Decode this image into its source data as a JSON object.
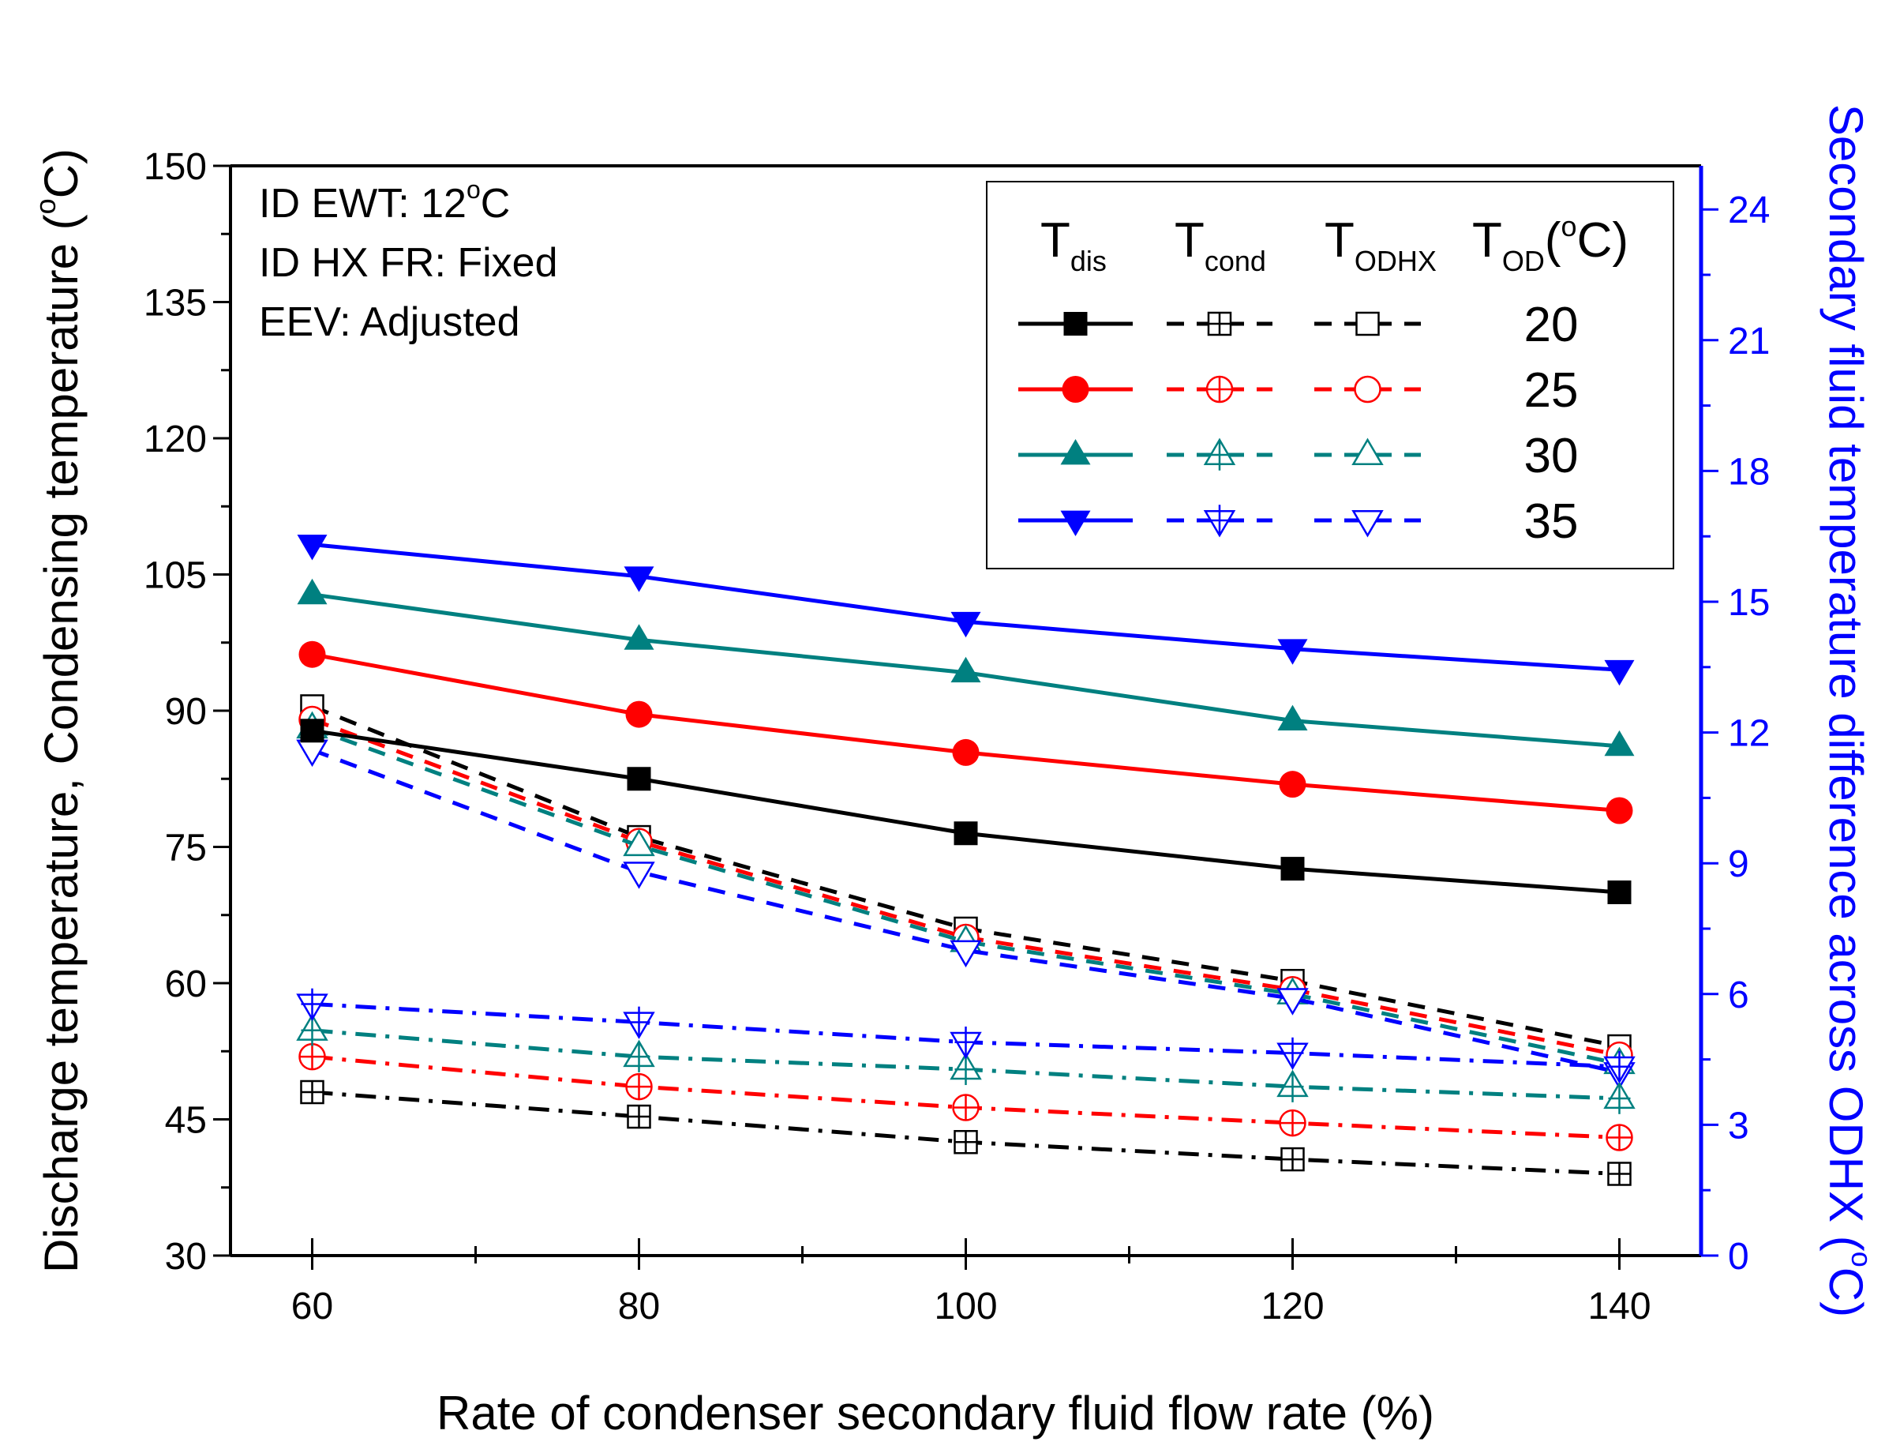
{
  "chart_data": {
    "type": "line",
    "x": [
      60,
      80,
      100,
      120,
      140
    ],
    "xlabel": "Rate of condenser secondary fluid flow rate (%)",
    "ylabel": "Discharge temperature, Condensing temperature (",
    "ylabel_unit": "C)",
    "y2label": "Secondary fluid temperature difference across ODHX (",
    "y2label_unit": "C)",
    "degree_symbol": "o",
    "xlim": [
      55,
      145
    ],
    "ylim": [
      30,
      150
    ],
    "y2lim": [
      0,
      25
    ],
    "xticks": [
      60,
      80,
      100,
      120,
      140
    ],
    "yticks": [
      30,
      45,
      60,
      75,
      90,
      105,
      120,
      135,
      150
    ],
    "y2ticks": [
      0,
      3,
      6,
      9,
      12,
      15,
      18,
      21,
      24
    ],
    "annotations": {
      "line1_pre": "ID EWT: 12",
      "line1_post": "C",
      "line2": "ID HX FR: Fixed",
      "line3": "EEV: Adjusted"
    },
    "legend": {
      "position": "top-right",
      "header_tdis": "T",
      "header_tdis_sub": "dis",
      "header_tcond": "T",
      "header_tcond_sub": "cond",
      "header_todhx": "T",
      "header_todhx_sub": "ODHX",
      "header_tod": "T",
      "header_tod_sub": "OD",
      "header_tod_unit": "(",
      "header_tod_unit_end": "C)",
      "entries": [
        "20",
        "25",
        "30",
        "35"
      ]
    },
    "colors": {
      "20": "#000000",
      "25": "#ff0000",
      "30": "#008080",
      "35": "#0000ff"
    },
    "series": [
      {
        "name": "T_dis 20",
        "group": "dis",
        "od": "20",
        "axis": "left",
        "values": [
          87.8,
          82.5,
          76.5,
          72.6,
          70.0
        ]
      },
      {
        "name": "T_dis 25",
        "group": "dis",
        "od": "25",
        "axis": "left",
        "values": [
          96.2,
          89.6,
          85.4,
          81.9,
          79.0
        ]
      },
      {
        "name": "T_dis 30",
        "group": "dis",
        "od": "30",
        "axis": "left",
        "values": [
          102.8,
          97.8,
          94.2,
          88.9,
          86.1
        ]
      },
      {
        "name": "T_dis 35",
        "group": "dis",
        "od": "35",
        "axis": "left",
        "values": [
          108.3,
          104.8,
          99.8,
          96.8,
          94.5
        ]
      },
      {
        "name": "T_cond 20",
        "group": "cond",
        "od": "20",
        "axis": "left",
        "values": [
          48.0,
          45.3,
          42.5,
          40.6,
          39.0
        ]
      },
      {
        "name": "T_cond 25",
        "group": "cond",
        "od": "25",
        "axis": "left",
        "values": [
          51.9,
          48.6,
          46.3,
          44.6,
          43.0
        ]
      },
      {
        "name": "T_cond 30",
        "group": "cond",
        "od": "30",
        "axis": "left",
        "values": [
          54.8,
          51.9,
          50.5,
          48.6,
          47.3
        ]
      },
      {
        "name": "T_cond 35",
        "group": "cond",
        "od": "35",
        "axis": "left",
        "values": [
          57.7,
          55.7,
          53.5,
          52.3,
          50.8
        ]
      },
      {
        "name": "T_ODHX 20",
        "group": "odhx",
        "od": "20",
        "axis": "right",
        "values": [
          12.6,
          9.6,
          7.5,
          6.3,
          4.8
        ]
      },
      {
        "name": "T_ODHX 25",
        "group": "odhx",
        "od": "25",
        "axis": "right",
        "values": [
          12.3,
          9.5,
          7.3,
          6.1,
          4.6
        ]
      },
      {
        "name": "T_ODHX 30",
        "group": "odhx",
        "od": "30",
        "axis": "right",
        "values": [
          12.1,
          9.4,
          7.2,
          6.0,
          4.4
        ]
      },
      {
        "name": "T_ODHX 35",
        "group": "odhx",
        "od": "35",
        "axis": "right",
        "values": [
          11.6,
          8.8,
          7.0,
          5.9,
          4.2
        ]
      }
    ]
  }
}
